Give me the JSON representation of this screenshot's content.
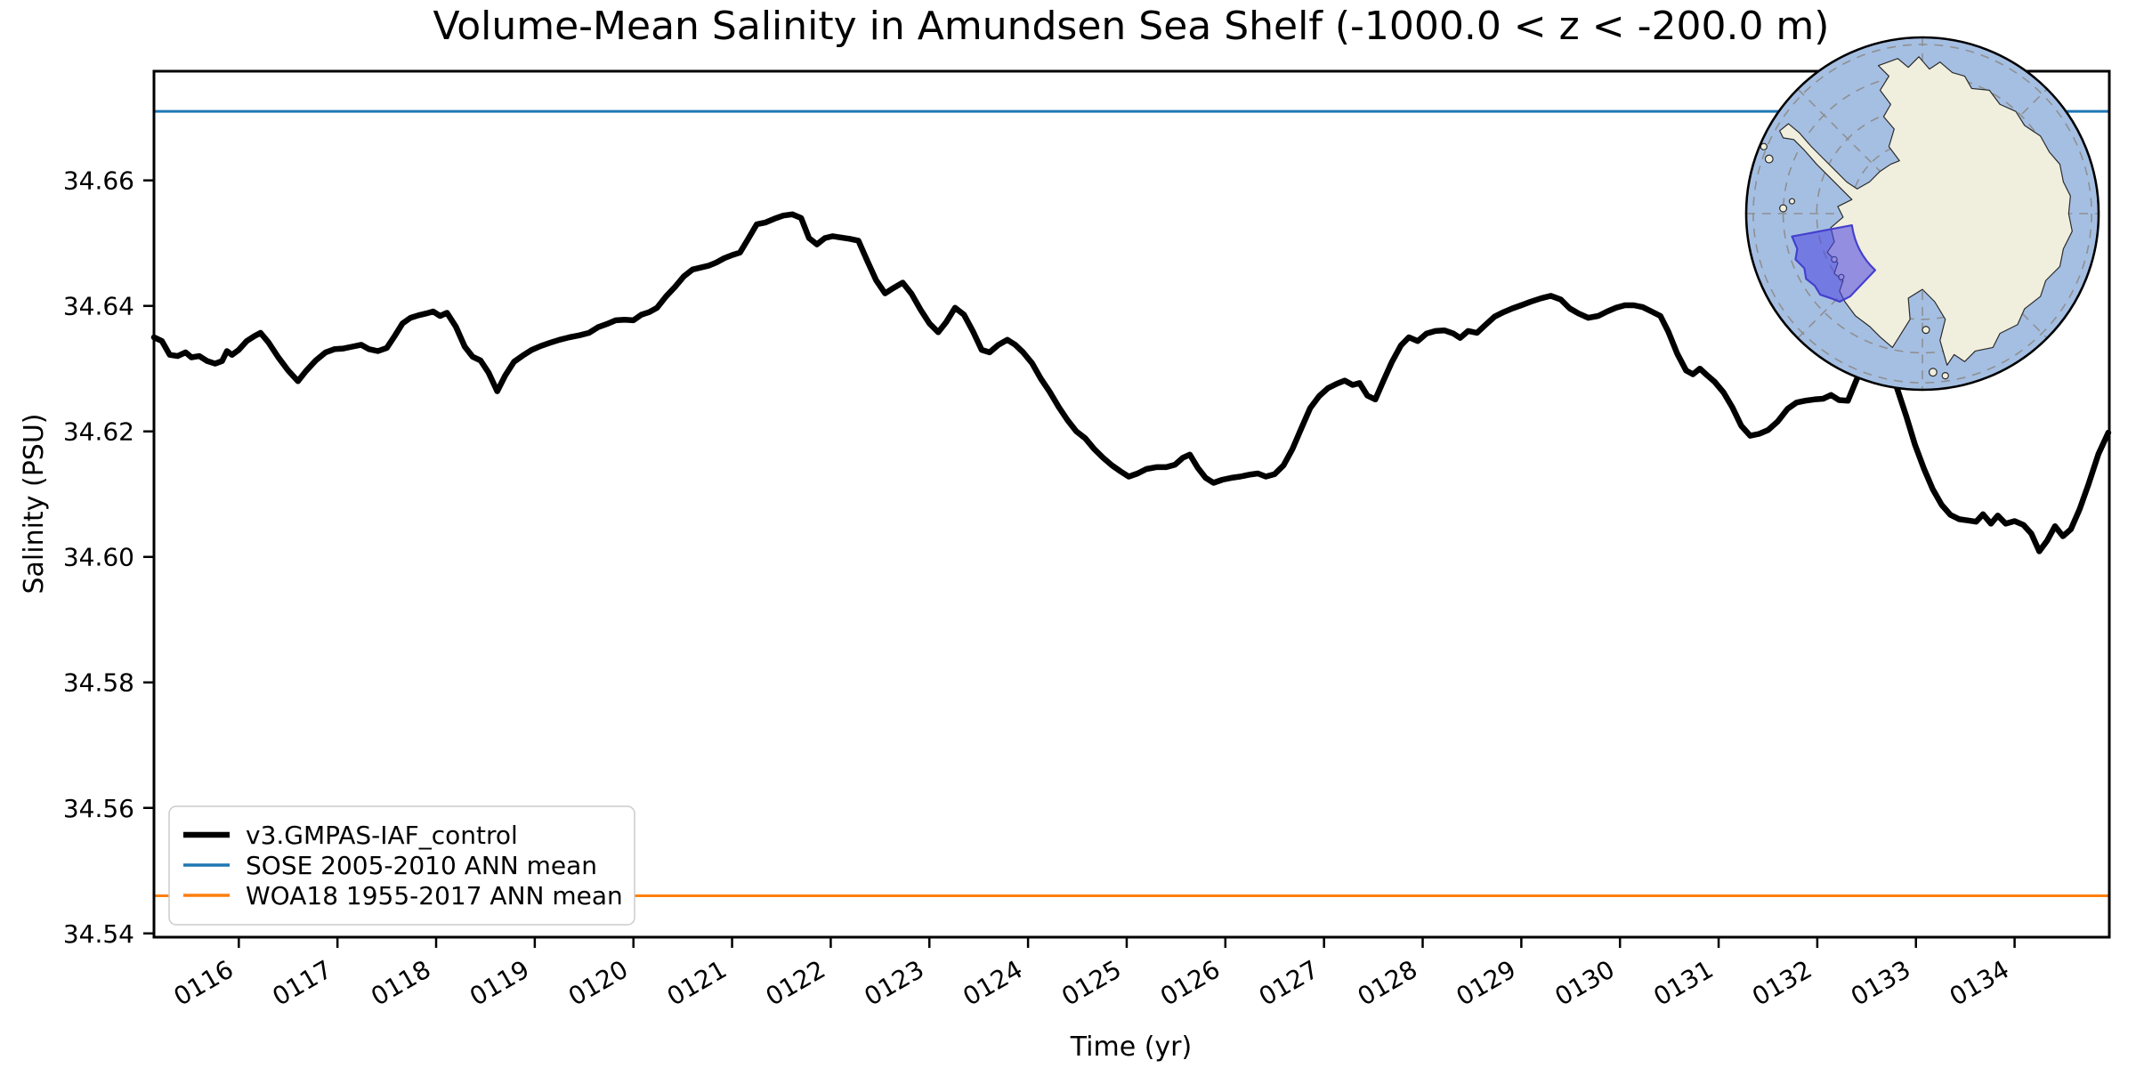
{
  "chart_data": {
    "type": "line",
    "title": "Volume-Mean Salinity in Amundsen Sea Shelf (-1000.0 < z < -200.0 m)",
    "xlabel": "Time (yr)",
    "ylabel": "Salinity (PSU)",
    "xlim": [
      115.14,
      134.96
    ],
    "ylim": [
      34.5394,
      34.6774
    ],
    "grid": false,
    "legend_position": "lower left",
    "xticks": [
      {
        "v": 116,
        "label": "0116"
      },
      {
        "v": 117,
        "label": "0117"
      },
      {
        "v": 118,
        "label": "0118"
      },
      {
        "v": 119,
        "label": "0119"
      },
      {
        "v": 120,
        "label": "0120"
      },
      {
        "v": 121,
        "label": "0121"
      },
      {
        "v": 122,
        "label": "0122"
      },
      {
        "v": 123,
        "label": "0123"
      },
      {
        "v": 124,
        "label": "0124"
      },
      {
        "v": 125,
        "label": "0125"
      },
      {
        "v": 126,
        "label": "0126"
      },
      {
        "v": 127,
        "label": "0127"
      },
      {
        "v": 128,
        "label": "0128"
      },
      {
        "v": 129,
        "label": "0129"
      },
      {
        "v": 130,
        "label": "0130"
      },
      {
        "v": 131,
        "label": "0131"
      },
      {
        "v": 132,
        "label": "0132"
      },
      {
        "v": 133,
        "label": "0133"
      },
      {
        "v": 134,
        "label": "0134"
      }
    ],
    "yticks": [
      {
        "v": 34.54,
        "label": "34.54"
      },
      {
        "v": 34.56,
        "label": "34.56"
      },
      {
        "v": 34.58,
        "label": "34.58"
      },
      {
        "v": 34.6,
        "label": "34.60"
      },
      {
        "v": 34.62,
        "label": "34.62"
      },
      {
        "v": 34.64,
        "label": "34.64"
      },
      {
        "v": 34.66,
        "label": "34.66"
      }
    ],
    "series": [
      {
        "name": "v3.GMPAS-IAF_control",
        "color": "#000000",
        "width": 6.5,
        "points": [
          [
            115.14,
            34.635
          ],
          [
            115.22,
            34.6344
          ],
          [
            115.3,
            34.6322
          ],
          [
            115.38,
            34.632
          ],
          [
            115.46,
            34.6326
          ],
          [
            115.52,
            34.6318
          ],
          [
            115.6,
            34.632
          ],
          [
            115.68,
            34.6312
          ],
          [
            115.76,
            34.6308
          ],
          [
            115.83,
            34.6312
          ],
          [
            115.88,
            34.6328
          ],
          [
            115.93,
            34.6322
          ],
          [
            116.0,
            34.633
          ],
          [
            116.08,
            34.6344
          ],
          [
            116.16,
            34.6352
          ],
          [
            116.22,
            34.6357
          ],
          [
            116.3,
            34.6342
          ],
          [
            116.4,
            34.6318
          ],
          [
            116.5,
            34.6297
          ],
          [
            116.6,
            34.628
          ],
          [
            116.68,
            34.6296
          ],
          [
            116.78,
            34.6313
          ],
          [
            116.88,
            34.6326
          ],
          [
            116.97,
            34.6331
          ],
          [
            117.06,
            34.6332
          ],
          [
            117.15,
            34.6335
          ],
          [
            117.24,
            34.6338
          ],
          [
            117.32,
            34.6331
          ],
          [
            117.41,
            34.6328
          ],
          [
            117.5,
            34.6333
          ],
          [
            117.58,
            34.6352
          ],
          [
            117.66,
            34.6372
          ],
          [
            117.74,
            34.6381
          ],
          [
            117.82,
            34.6385
          ],
          [
            117.9,
            34.6388
          ],
          [
            117.97,
            34.6391
          ],
          [
            118.04,
            34.6384
          ],
          [
            118.11,
            34.6389
          ],
          [
            118.2,
            34.6367
          ],
          [
            118.29,
            34.6335
          ],
          [
            118.37,
            34.6319
          ],
          [
            118.45,
            34.6313
          ],
          [
            118.53,
            34.6294
          ],
          [
            118.62,
            34.6264
          ],
          [
            118.7,
            34.6289
          ],
          [
            118.79,
            34.6311
          ],
          [
            118.88,
            34.6321
          ],
          [
            118.97,
            34.633
          ],
          [
            119.06,
            34.6336
          ],
          [
            119.15,
            34.6341
          ],
          [
            119.25,
            34.6346
          ],
          [
            119.35,
            34.635
          ],
          [
            119.45,
            34.6353
          ],
          [
            119.55,
            34.6357
          ],
          [
            119.64,
            34.6366
          ],
          [
            119.73,
            34.6371
          ],
          [
            119.82,
            34.6377
          ],
          [
            119.91,
            34.6378
          ],
          [
            120.0,
            34.6377
          ],
          [
            120.08,
            34.6386
          ],
          [
            120.16,
            34.639
          ],
          [
            120.24,
            34.6397
          ],
          [
            120.33,
            34.6415
          ],
          [
            120.42,
            34.643
          ],
          [
            120.51,
            34.6447
          ],
          [
            120.6,
            34.6458
          ],
          [
            120.68,
            34.6461
          ],
          [
            120.76,
            34.6464
          ],
          [
            120.84,
            34.6469
          ],
          [
            120.92,
            34.6476
          ],
          [
            121.0,
            34.6481
          ],
          [
            121.08,
            34.6485
          ],
          [
            121.16,
            34.6506
          ],
          [
            121.25,
            34.653
          ],
          [
            121.34,
            34.6533
          ],
          [
            121.43,
            34.6539
          ],
          [
            121.52,
            34.6544
          ],
          [
            121.61,
            34.6546
          ],
          [
            121.7,
            34.654
          ],
          [
            121.78,
            34.6508
          ],
          [
            121.86,
            34.6498
          ],
          [
            121.94,
            34.6508
          ],
          [
            122.02,
            34.6511
          ],
          [
            122.1,
            34.6509
          ],
          [
            122.19,
            34.6507
          ],
          [
            122.28,
            34.6504
          ],
          [
            122.37,
            34.6472
          ],
          [
            122.46,
            34.6441
          ],
          [
            122.55,
            34.642
          ],
          [
            122.64,
            34.6429
          ],
          [
            122.73,
            34.6437
          ],
          [
            122.82,
            34.6419
          ],
          [
            122.91,
            34.6394
          ],
          [
            123.0,
            34.6372
          ],
          [
            123.09,
            34.6358
          ],
          [
            123.17,
            34.6374
          ],
          [
            123.26,
            34.6397
          ],
          [
            123.35,
            34.6386
          ],
          [
            123.44,
            34.636
          ],
          [
            123.53,
            34.633
          ],
          [
            123.61,
            34.6326
          ],
          [
            123.7,
            34.6338
          ],
          [
            123.79,
            34.6346
          ],
          [
            123.87,
            34.6338
          ],
          [
            123.95,
            34.6326
          ],
          [
            124.04,
            34.6309
          ],
          [
            124.13,
            34.6284
          ],
          [
            124.22,
            34.6263
          ],
          [
            124.31,
            34.6239
          ],
          [
            124.4,
            34.6218
          ],
          [
            124.49,
            34.62
          ],
          [
            124.58,
            34.6189
          ],
          [
            124.67,
            34.6172
          ],
          [
            124.76,
            34.6158
          ],
          [
            124.85,
            34.6146
          ],
          [
            124.94,
            34.6136
          ],
          [
            125.02,
            34.6128
          ],
          [
            125.11,
            34.6133
          ],
          [
            125.2,
            34.614
          ],
          [
            125.3,
            34.6143
          ],
          [
            125.4,
            34.6143
          ],
          [
            125.49,
            34.6147
          ],
          [
            125.57,
            34.6158
          ],
          [
            125.64,
            34.6163
          ],
          [
            125.72,
            34.6142
          ],
          [
            125.8,
            34.6126
          ],
          [
            125.88,
            34.6118
          ],
          [
            125.97,
            34.6123
          ],
          [
            126.06,
            34.6126
          ],
          [
            126.15,
            34.6128
          ],
          [
            126.24,
            34.6131
          ],
          [
            126.33,
            34.6133
          ],
          [
            126.41,
            34.6128
          ],
          [
            126.5,
            34.6132
          ],
          [
            126.59,
            34.6146
          ],
          [
            126.68,
            34.6172
          ],
          [
            126.77,
            34.6205
          ],
          [
            126.86,
            34.6237
          ],
          [
            126.95,
            34.6256
          ],
          [
            127.04,
            34.6269
          ],
          [
            127.13,
            34.6276
          ],
          [
            127.21,
            34.6281
          ],
          [
            127.29,
            34.6274
          ],
          [
            127.36,
            34.6277
          ],
          [
            127.44,
            34.6257
          ],
          [
            127.52,
            34.6251
          ],
          [
            127.6,
            34.628
          ],
          [
            127.69,
            34.6311
          ],
          [
            127.78,
            34.6337
          ],
          [
            127.86,
            34.635
          ],
          [
            127.95,
            34.6344
          ],
          [
            128.04,
            34.6356
          ],
          [
            128.13,
            34.636
          ],
          [
            128.22,
            34.6361
          ],
          [
            128.31,
            34.6356
          ],
          [
            128.38,
            34.6349
          ],
          [
            128.46,
            34.636
          ],
          [
            128.55,
            34.6357
          ],
          [
            128.64,
            34.637
          ],
          [
            128.73,
            34.6383
          ],
          [
            128.82,
            34.639
          ],
          [
            128.91,
            34.6396
          ],
          [
            129.0,
            34.6401
          ],
          [
            129.1,
            34.6407
          ],
          [
            129.2,
            34.6412
          ],
          [
            129.3,
            34.6416
          ],
          [
            129.4,
            34.641
          ],
          [
            129.49,
            34.6396
          ],
          [
            129.58,
            34.6388
          ],
          [
            129.68,
            34.6381
          ],
          [
            129.78,
            34.6384
          ],
          [
            129.87,
            34.6391
          ],
          [
            129.96,
            34.6397
          ],
          [
            130.05,
            34.6401
          ],
          [
            130.14,
            34.6401
          ],
          [
            130.23,
            34.6398
          ],
          [
            130.32,
            34.6391
          ],
          [
            130.41,
            34.6384
          ],
          [
            130.49,
            34.6359
          ],
          [
            130.58,
            34.6324
          ],
          [
            130.67,
            34.6297
          ],
          [
            130.74,
            34.6291
          ],
          [
            130.81,
            34.63
          ],
          [
            130.88,
            34.629
          ],
          [
            130.96,
            34.6279
          ],
          [
            131.05,
            34.6262
          ],
          [
            131.14,
            34.6238
          ],
          [
            131.23,
            34.6209
          ],
          [
            131.32,
            34.6193
          ],
          [
            131.41,
            34.6196
          ],
          [
            131.5,
            34.6202
          ],
          [
            131.6,
            34.6216
          ],
          [
            131.7,
            34.6236
          ],
          [
            131.79,
            34.6246
          ],
          [
            131.88,
            34.6249
          ],
          [
            131.97,
            34.6251
          ],
          [
            132.06,
            34.6252
          ],
          [
            132.14,
            34.6258
          ],
          [
            132.22,
            34.625
          ],
          [
            132.31,
            34.6249
          ],
          [
            132.4,
            34.6283
          ],
          [
            132.49,
            34.6309
          ],
          [
            132.58,
            34.633
          ],
          [
            132.64,
            34.6338
          ],
          [
            132.72,
            34.6306
          ],
          [
            132.81,
            34.6268
          ],
          [
            132.9,
            34.6225
          ],
          [
            132.99,
            34.6179
          ],
          [
            133.08,
            34.6141
          ],
          [
            133.17,
            34.6108
          ],
          [
            133.26,
            34.6083
          ],
          [
            133.35,
            34.6067
          ],
          [
            133.44,
            34.606
          ],
          [
            133.53,
            34.6058
          ],
          [
            133.61,
            34.6056
          ],
          [
            133.68,
            34.6068
          ],
          [
            133.76,
            34.6053
          ],
          [
            133.83,
            34.6066
          ],
          [
            133.91,
            34.6053
          ],
          [
            134.0,
            34.6057
          ],
          [
            134.09,
            34.6051
          ],
          [
            134.17,
            34.6037
          ],
          [
            134.25,
            34.6009
          ],
          [
            134.33,
            34.6026
          ],
          [
            134.41,
            34.6049
          ],
          [
            134.49,
            34.6033
          ],
          [
            134.57,
            34.6044
          ],
          [
            134.66,
            34.6076
          ],
          [
            134.75,
            34.6116
          ],
          [
            134.85,
            34.6164
          ],
          [
            134.95,
            34.6198
          ]
        ]
      },
      {
        "name": "SOSE 2005-2010 ANN mean",
        "color": "#1f77b4",
        "width": 3,
        "constant": 34.671
      },
      {
        "name": "WOA18 1955-2017 ANN mean",
        "color": "#ff7f0e",
        "width": 3,
        "constant": 34.546
      }
    ]
  },
  "inset_map": {
    "colors": {
      "ocean": "#a5bfe3",
      "land": "#f0eedd",
      "coast": "#2a2a2a",
      "graticule": "#8f8f8f",
      "highlight_fill": "rgba(80,72,225,0.58)",
      "highlight_edge": "#4440cc",
      "border": "#000000"
    }
  }
}
